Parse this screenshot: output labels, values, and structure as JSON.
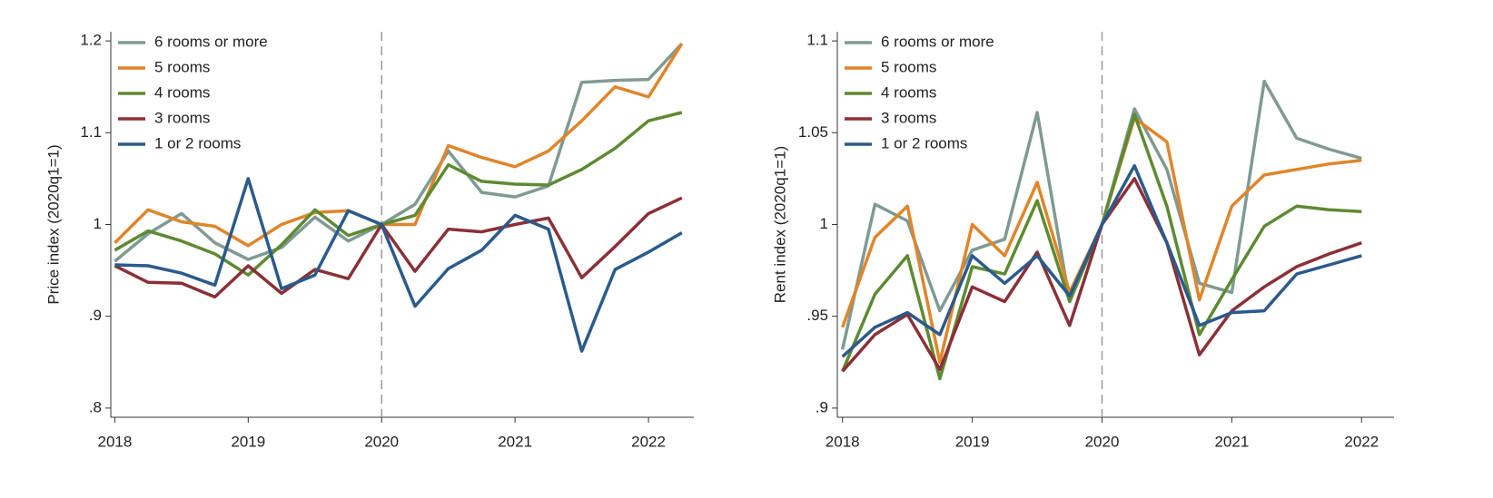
{
  "chart_data": [
    {
      "type": "line",
      "y_label": "Price index (2020q1=1)",
      "x": [
        2018,
        2018.25,
        2018.5,
        2018.75,
        2019,
        2019.25,
        2019.5,
        2019.75,
        2020,
        2020.25,
        2020.5,
        2020.75,
        2021,
        2021.25,
        2021.5,
        2021.75,
        2022,
        2022.25
      ],
      "xlim": [
        2017.97,
        2022.34
      ],
      "xticks": [
        2018,
        2019,
        2020,
        2021,
        2022
      ],
      "ylim": [
        0.79,
        1.21
      ],
      "yticks": [
        {
          "value": 0.8,
          "label": ".8"
        },
        {
          "value": 0.9,
          "label": ".9"
        },
        1,
        1.1,
        1.2
      ],
      "vline": 2020,
      "legend": "top-left",
      "series": [
        {
          "name": "6 rooms or more",
          "color": "#7f9a93",
          "values": [
            0.96,
            0.99,
            1.012,
            0.98,
            0.962,
            0.975,
            1.008,
            0.982,
            1.0,
            1.022,
            1.08,
            1.035,
            1.03,
            1.042,
            1.155,
            1.157,
            1.158,
            1.197
          ]
        },
        {
          "name": "5 rooms",
          "color": "#e0852a",
          "values": [
            0.98,
            1.016,
            1.003,
            0.998,
            0.977,
            1.0,
            1.013,
            1.015,
            1.0,
            1.0,
            1.086,
            1.073,
            1.063,
            1.08,
            1.113,
            1.15,
            1.139,
            1.197
          ]
        },
        {
          "name": "4 rooms",
          "color": "#5e8a32",
          "values": [
            0.972,
            0.993,
            0.982,
            0.968,
            0.945,
            0.978,
            1.016,
            0.988,
            1.0,
            1.01,
            1.065,
            1.047,
            1.044,
            1.043,
            1.06,
            1.083,
            1.113,
            1.122
          ]
        },
        {
          "name": "3 rooms",
          "color": "#8b3037",
          "values": [
            0.955,
            0.937,
            0.936,
            0.921,
            0.955,
            0.925,
            0.951,
            0.941,
            1.0,
            0.949,
            0.995,
            0.992,
            1.0,
            1.007,
            0.942,
            0.976,
            1.012,
            1.029
          ]
        },
        {
          "name": "1 or 2 rooms",
          "color": "#2b5a8c",
          "values": [
            0.956,
            0.955,
            0.947,
            0.934,
            1.05,
            0.93,
            0.945,
            1.015,
            1.0,
            0.911,
            0.952,
            0.972,
            1.01,
            0.995,
            0.862,
            0.951,
            0.97,
            0.991
          ]
        }
      ]
    },
    {
      "type": "line",
      "y_label": "Rent index (2020q1=1)",
      "x": [
        2018,
        2018.25,
        2018.5,
        2018.75,
        2019,
        2019.25,
        2019.5,
        2019.75,
        2020,
        2020.25,
        2020.5,
        2020.75,
        2021,
        2021.25,
        2021.5,
        2021.75,
        2022
      ],
      "xlim": [
        2017.96,
        2022.25
      ],
      "xticks": [
        2018,
        2019,
        2020,
        2021,
        2022
      ],
      "ylim": [
        0.895,
        1.105
      ],
      "yticks": [
        {
          "value": 0.9,
          "label": ".9"
        },
        {
          "value": 0.95,
          "label": ".95"
        },
        1,
        1.05,
        1.1
      ],
      "vline": 2020,
      "legend": "top-left",
      "series": [
        {
          "name": "6 rooms or more",
          "color": "#7f9a93",
          "values": [
            0.932,
            1.011,
            1.002,
            0.953,
            0.986,
            0.992,
            1.061,
            0.958,
            1.0,
            1.063,
            1.03,
            0.968,
            0.963,
            1.078,
            1.047,
            1.041,
            1.036
          ]
        },
        {
          "name": "5 rooms",
          "color": "#e0852a",
          "values": [
            0.944,
            0.993,
            1.01,
            0.925,
            1.0,
            0.983,
            1.023,
            0.963,
            1.0,
            1.058,
            1.045,
            0.959,
            1.01,
            1.027,
            1.03,
            1.033,
            1.035
          ]
        },
        {
          "name": "4 rooms",
          "color": "#5e8a32",
          "values": [
            0.92,
            0.962,
            0.983,
            0.916,
            0.977,
            0.973,
            1.013,
            0.958,
            1.0,
            1.06,
            1.01,
            0.94,
            0.97,
            0.999,
            1.01,
            1.008,
            1.007
          ]
        },
        {
          "name": "3 rooms",
          "color": "#8b3037",
          "values": [
            0.92,
            0.94,
            0.951,
            0.921,
            0.966,
            0.958,
            0.985,
            0.945,
            1.0,
            1.025,
            0.99,
            0.929,
            0.953,
            0.966,
            0.977,
            0.984,
            0.99
          ]
        },
        {
          "name": "1 or 2 rooms",
          "color": "#2b5a8c",
          "values": [
            0.928,
            0.944,
            0.952,
            0.94,
            0.983,
            0.968,
            0.983,
            0.961,
            1.0,
            1.032,
            0.99,
            0.945,
            0.952,
            0.953,
            0.973,
            0.978,
            0.983
          ]
        }
      ]
    }
  ]
}
